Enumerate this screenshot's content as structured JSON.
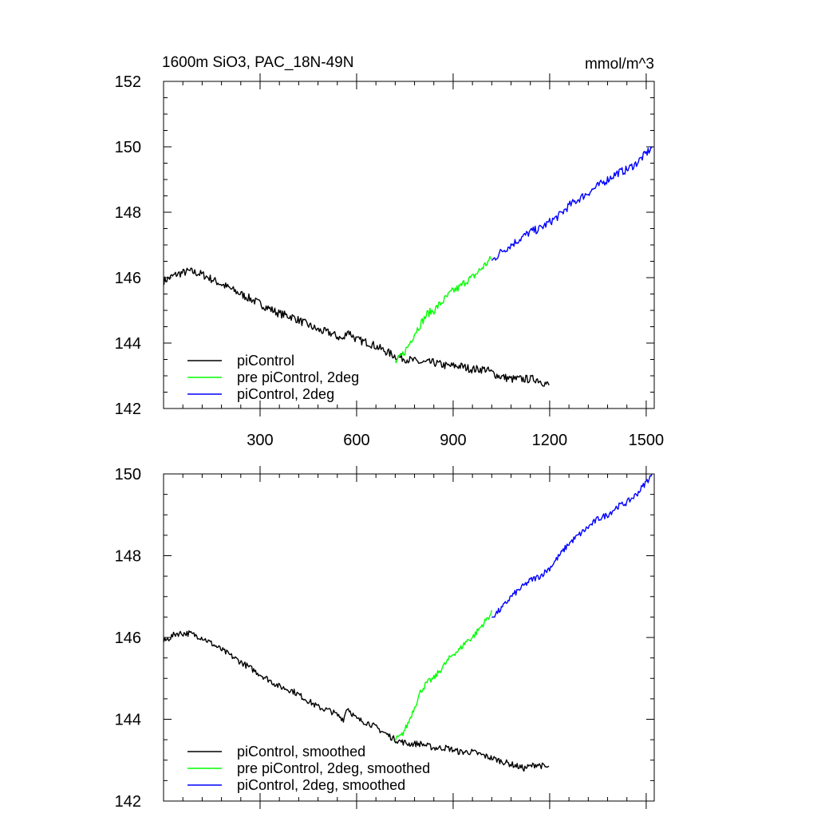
{
  "chart_data": [
    {
      "type": "line",
      "title_left": "1600m SiO3, PAC_18N-49N",
      "title_right": "mmol/m^3",
      "xlim": [
        0,
        1525
      ],
      "ylim": [
        142,
        152
      ],
      "xticks": [
        300,
        600,
        900,
        1200,
        1500
      ],
      "xtick_labels": [
        "300",
        "600",
        "900",
        "1200",
        "1500"
      ],
      "yticks": [
        142,
        144,
        146,
        148,
        150,
        152
      ],
      "ytick_labels": [
        "142",
        "144",
        "146",
        "148",
        "150",
        "152"
      ],
      "grid": false,
      "legend_position": "bottom-left",
      "series": [
        {
          "name": "piControl",
          "color": "#000000",
          "x": [
            1,
            40,
            80,
            120,
            160,
            200,
            240,
            280,
            320,
            360,
            400,
            440,
            480,
            520,
            560,
            570,
            600,
            640,
            680,
            720,
            760,
            800,
            840,
            880,
            920,
            960,
            1000,
            1040,
            1080,
            1120,
            1160,
            1200
          ],
          "y": [
            145.9,
            146.1,
            146.2,
            146.1,
            145.9,
            145.7,
            145.5,
            145.3,
            145.1,
            144.9,
            144.8,
            144.6,
            144.4,
            144.3,
            144.1,
            144.4,
            144.1,
            144.0,
            143.8,
            143.6,
            143.5,
            143.4,
            143.4,
            143.3,
            143.3,
            143.2,
            143.2,
            143.0,
            142.9,
            142.9,
            142.9,
            142.7
          ]
        },
        {
          "name": "pre piControl, 2deg",
          "color": "#00ff00",
          "x": [
            720,
            740,
            760,
            780,
            800,
            820,
            840,
            860,
            880,
            900,
            920,
            940,
            960,
            980,
            1000,
            1020
          ],
          "y": [
            143.4,
            143.6,
            143.9,
            144.3,
            144.6,
            144.9,
            145.0,
            145.2,
            145.4,
            145.6,
            145.7,
            145.9,
            146.0,
            146.2,
            146.4,
            146.6
          ]
        },
        {
          "name": "piControl, 2deg",
          "color": "#0000ff",
          "x": [
            1020,
            1050,
            1080,
            1110,
            1140,
            1170,
            1200,
            1230,
            1260,
            1290,
            1320,
            1350,
            1380,
            1410,
            1440,
            1470,
            1500,
            1520
          ],
          "y": [
            146.5,
            146.8,
            147.0,
            147.2,
            147.4,
            147.5,
            147.7,
            147.9,
            148.2,
            148.4,
            148.6,
            148.8,
            149.0,
            149.2,
            149.3,
            149.5,
            149.8,
            150.0
          ]
        }
      ]
    },
    {
      "type": "line",
      "xlim": [
        0,
        1525
      ],
      "ylim": [
        142,
        150
      ],
      "xticks": [
        300,
        600,
        900,
        1200,
        1500
      ],
      "yticks": [
        142,
        144,
        146,
        148,
        150
      ],
      "ytick_labels": [
        "142",
        "144",
        "146",
        "148",
        "150"
      ],
      "grid": false,
      "legend_position": "bottom-left",
      "series": [
        {
          "name": "piControl, smoothed",
          "color": "#000000",
          "x": [
            1,
            40,
            80,
            120,
            160,
            200,
            240,
            280,
            320,
            360,
            400,
            440,
            480,
            520,
            560,
            570,
            600,
            640,
            680,
            720,
            760,
            800,
            840,
            880,
            920,
            960,
            1000,
            1040,
            1080,
            1120,
            1160,
            1200
          ],
          "y": [
            145.9,
            146.1,
            146.1,
            146.0,
            145.8,
            145.6,
            145.4,
            145.2,
            145.0,
            144.8,
            144.7,
            144.5,
            144.3,
            144.2,
            144.0,
            144.3,
            144.0,
            143.9,
            143.7,
            143.5,
            143.4,
            143.4,
            143.3,
            143.3,
            143.2,
            143.2,
            143.1,
            143.0,
            142.9,
            142.8,
            142.9,
            142.8
          ]
        },
        {
          "name": "pre piControl, 2deg, smoothed",
          "color": "#00ff00",
          "x": [
            720,
            740,
            760,
            780,
            800,
            820,
            840,
            860,
            880,
            900,
            920,
            940,
            960,
            980,
            1000,
            1020
          ],
          "y": [
            143.5,
            143.6,
            143.9,
            144.3,
            144.7,
            144.9,
            145.0,
            145.2,
            145.4,
            145.6,
            145.7,
            145.9,
            146.0,
            146.2,
            146.4,
            146.6
          ]
        },
        {
          "name": "piControl, 2deg, smoothed",
          "color": "#0000ff",
          "x": [
            1020,
            1050,
            1080,
            1110,
            1140,
            1170,
            1200,
            1230,
            1260,
            1290,
            1320,
            1350,
            1380,
            1410,
            1440,
            1470,
            1500,
            1520
          ],
          "y": [
            146.5,
            146.7,
            147.0,
            147.2,
            147.4,
            147.5,
            147.7,
            148.0,
            148.3,
            148.5,
            148.7,
            148.9,
            149.0,
            149.2,
            149.3,
            149.5,
            149.8,
            150.0
          ]
        }
      ]
    }
  ]
}
